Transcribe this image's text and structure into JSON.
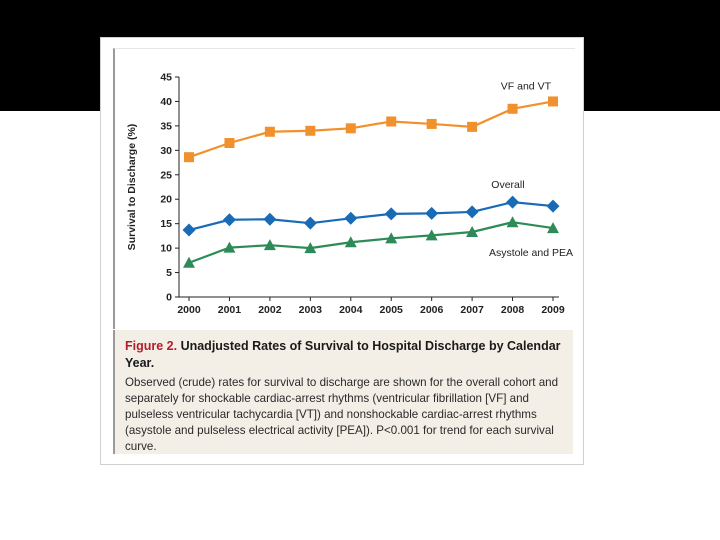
{
  "chart_data": {
    "type": "line",
    "ylabel": "Survival to Discharge (%)",
    "xlabel": "",
    "ylim": [
      0,
      45
    ],
    "yticks": [
      0,
      5,
      10,
      15,
      20,
      25,
      30,
      35,
      40,
      45
    ],
    "categories": [
      "2000",
      "2001",
      "2002",
      "2003",
      "2004",
      "2005",
      "2006",
      "2007",
      "2008",
      "2009"
    ],
    "grid": false,
    "series": [
      {
        "name": "VF and VT",
        "marker": "square",
        "color": "#f0912d",
        "values": [
          28.6,
          31.5,
          33.8,
          34.0,
          34.5,
          35.9,
          35.4,
          34.8,
          38.5,
          40.0
        ]
      },
      {
        "name": "Overall",
        "marker": "diamond",
        "color": "#1a6bb5",
        "values": [
          13.7,
          15.8,
          15.9,
          15.1,
          16.1,
          17.0,
          17.1,
          17.4,
          19.4,
          18.6
        ]
      },
      {
        "name": "Asystole and PEA",
        "marker": "triangle",
        "color": "#2e8b57",
        "values": [
          7.0,
          10.1,
          10.6,
          10.0,
          11.2,
          12.0,
          12.6,
          13.3,
          15.3,
          14.1
        ]
      }
    ]
  },
  "caption": {
    "label": "Figure 2.",
    "title": " Unadjusted Rates of Survival to Hospital Discharge by Calendar Year.",
    "body": "Observed (crude) rates for survival to discharge are shown for the overall cohort and separately for shockable cardiac-arrest rhythms (ventricular fibrillation [VF] and pulseless ventricular tachycardia [VT]) and nonshockable cardiac-arrest rhythms (asystole and pulseless electrical activity [PEA]). P<0.001 for trend for each survival curve."
  }
}
